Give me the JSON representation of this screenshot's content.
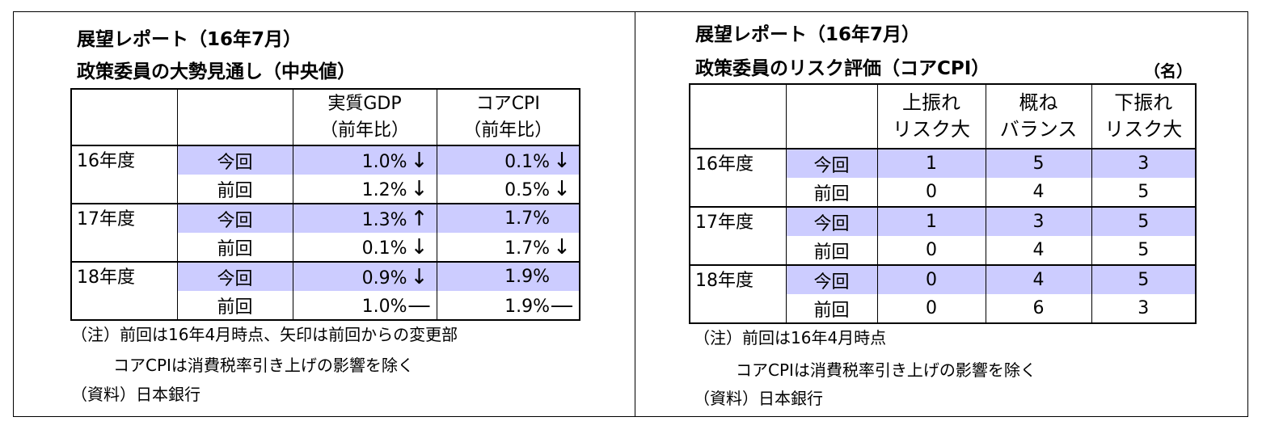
{
  "left": {
    "title_line1": "展望レポート（16年7月）",
    "title_line2": "政策委員の大勢見通し（中央値）",
    "col_headers": [
      {
        "line1": "実質GDP",
        "line2": "（前年比）"
      },
      {
        "line1": "コアCPI",
        "line2": "（前年比）"
      }
    ],
    "rows": [
      {
        "year": "16年度",
        "label": "今回",
        "gdp": "1.0%",
        "gdp_mark": "↓",
        "cpi": "0.1%",
        "cpi_mark": "↓"
      },
      {
        "year": "",
        "label": "前回",
        "gdp": "1.2%",
        "gdp_mark": "↓",
        "cpi": "0.5%",
        "cpi_mark": "↓"
      },
      {
        "year": "17年度",
        "label": "今回",
        "gdp": "1.3%",
        "gdp_mark": "↑",
        "cpi": "1.7%",
        "cpi_mark": ""
      },
      {
        "year": "",
        "label": "前回",
        "gdp": "0.1%",
        "gdp_mark": "↓",
        "cpi": "1.7%",
        "cpi_mark": "↓"
      },
      {
        "year": "18年度",
        "label": "今回",
        "gdp": "0.9%",
        "gdp_mark": "↓",
        "cpi": "1.9%",
        "cpi_mark": ""
      },
      {
        "year": "",
        "label": "前回",
        "gdp": "1.0%",
        "gdp_mark": "―",
        "cpi": "1.9%",
        "cpi_mark": "―"
      }
    ],
    "note1": "（注）前回は16年4月時点、矢印は前回からの変更部",
    "note2": "コアCPIは消費税率引き上げの影響を除く",
    "source": "（資料）日本銀行"
  },
  "right": {
    "title_line1": "展望レポート（16年7月）",
    "title_line2": "政策委員のリスク評価（コアCPI）",
    "unit": "（名）",
    "col_headers": [
      {
        "line1": "上振れ",
        "line2": "リスク大"
      },
      {
        "line1": "概ね",
        "line2": "バランス"
      },
      {
        "line1": "下振れ",
        "line2": "リスク大"
      }
    ],
    "rows": [
      {
        "year": "16年度",
        "label": "今回",
        "up": "1",
        "bal": "5",
        "down": "3"
      },
      {
        "year": "",
        "label": "前回",
        "up": "0",
        "bal": "4",
        "down": "5"
      },
      {
        "year": "17年度",
        "label": "今回",
        "up": "1",
        "bal": "3",
        "down": "5"
      },
      {
        "year": "",
        "label": "前回",
        "up": "0",
        "bal": "4",
        "down": "5"
      },
      {
        "year": "18年度",
        "label": "今回",
        "up": "0",
        "bal": "4",
        "down": "5"
      },
      {
        "year": "",
        "label": "前回",
        "up": "0",
        "bal": "6",
        "down": "3"
      }
    ],
    "note1": "（注）前回は16年4月時点",
    "note2": "コアCPIは消費税率引き上げの影響を除く",
    "source": "（資料）日本銀行"
  },
  "colors": {
    "highlight": "#ccccff",
    "border": "#000000"
  }
}
